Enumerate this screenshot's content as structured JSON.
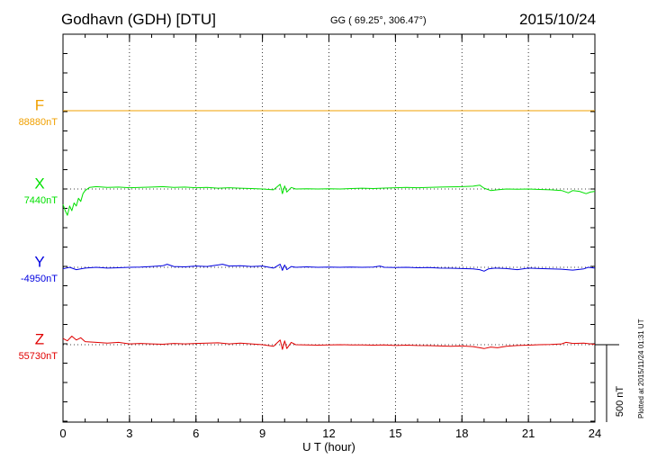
{
  "header": {
    "station": "Godhavn (GDH)  [DTU]",
    "coords": "GG ( 69.25°, 306.47°)",
    "date": "2015/10/24"
  },
  "side_note": "Plotted at 2015/11/24 01:31  UT",
  "chart_data": {
    "type": "line",
    "xlabel": "U T (hour)",
    "xlim": [
      0,
      24
    ],
    "x_ticks": [
      "0",
      "3",
      "6",
      "9",
      "12",
      "15",
      "18",
      "21",
      "24"
    ],
    "scale_label": "500 nT",
    "scale_nT": 500,
    "series": [
      {
        "name": "F",
        "baseline_label": "88880nT",
        "color": "#f0a000",
        "points": [
          [
            0,
            0
          ],
          [
            24,
            0
          ]
        ]
      },
      {
        "name": "X",
        "baseline_label": "7440nT",
        "color": "#00e000",
        "points": [
          [
            0,
            -100
          ],
          [
            0.1,
            -140
          ],
          [
            0.2,
            -170
          ],
          [
            0.3,
            -110
          ],
          [
            0.4,
            -140
          ],
          [
            0.5,
            -90
          ],
          [
            0.6,
            -110
          ],
          [
            0.7,
            -60
          ],
          [
            0.8,
            -80
          ],
          [
            0.9,
            -30
          ],
          [
            1.0,
            -10
          ],
          [
            1.2,
            10
          ],
          [
            1.5,
            15
          ],
          [
            2.0,
            10
          ],
          [
            2.5,
            12
          ],
          [
            3.0,
            8
          ],
          [
            3.5,
            10
          ],
          [
            4.0,
            12
          ],
          [
            4.5,
            15
          ],
          [
            5.0,
            10
          ],
          [
            5.5,
            12
          ],
          [
            6.0,
            8
          ],
          [
            6.5,
            10
          ],
          [
            7.0,
            5
          ],
          [
            7.5,
            8
          ],
          [
            8.0,
            5
          ],
          [
            8.5,
            3
          ],
          [
            9.0,
            0
          ],
          [
            9.5,
            -5
          ],
          [
            9.8,
            30
          ],
          [
            9.9,
            -30
          ],
          [
            10.0,
            20
          ],
          [
            10.1,
            -20
          ],
          [
            10.3,
            10
          ],
          [
            10.5,
            0
          ],
          [
            11.0,
            2
          ],
          [
            11.5,
            0
          ],
          [
            12.0,
            2
          ],
          [
            12.5,
            0
          ],
          [
            13.0,
            3
          ],
          [
            13.5,
            5
          ],
          [
            14.0,
            3
          ],
          [
            14.5,
            6
          ],
          [
            15.0,
            8
          ],
          [
            15.5,
            10
          ],
          [
            16.0,
            8
          ],
          [
            16.5,
            10
          ],
          [
            17.0,
            12
          ],
          [
            17.5,
            14
          ],
          [
            18.0,
            15
          ],
          [
            18.5,
            18
          ],
          [
            18.8,
            25
          ],
          [
            19.0,
            5
          ],
          [
            19.3,
            -10
          ],
          [
            19.6,
            -5
          ],
          [
            20.0,
            0
          ],
          [
            20.5,
            -2
          ],
          [
            21.0,
            0
          ],
          [
            21.5,
            -3
          ],
          [
            22.0,
            -5
          ],
          [
            22.5,
            -10
          ],
          [
            22.8,
            -25
          ],
          [
            23.0,
            -10
          ],
          [
            23.3,
            -15
          ],
          [
            23.6,
            -30
          ],
          [
            23.8,
            -20
          ],
          [
            24.0,
            -15
          ]
        ]
      },
      {
        "name": "Y",
        "baseline_label": "-4950nT",
        "color": "#0000e0",
        "points": [
          [
            0,
            -10
          ],
          [
            0.3,
            0
          ],
          [
            0.6,
            -15
          ],
          [
            1.0,
            -5
          ],
          [
            1.5,
            0
          ],
          [
            2.0,
            -5
          ],
          [
            2.5,
            -3
          ],
          [
            3.0,
            0
          ],
          [
            3.5,
            2
          ],
          [
            4.0,
            5
          ],
          [
            4.5,
            10
          ],
          [
            4.7,
            20
          ],
          [
            5.0,
            5
          ],
          [
            5.5,
            3
          ],
          [
            6.0,
            8
          ],
          [
            6.5,
            5
          ],
          [
            7.0,
            15
          ],
          [
            7.2,
            20
          ],
          [
            7.5,
            8
          ],
          [
            8.0,
            10
          ],
          [
            8.5,
            5
          ],
          [
            9.0,
            8
          ],
          [
            9.5,
            -5
          ],
          [
            9.8,
            20
          ],
          [
            9.9,
            -20
          ],
          [
            10.0,
            15
          ],
          [
            10.1,
            -15
          ],
          [
            10.3,
            5
          ],
          [
            10.5,
            0
          ],
          [
            11.0,
            3
          ],
          [
            11.5,
            0
          ],
          [
            12.0,
            2
          ],
          [
            12.5,
            0
          ],
          [
            13.0,
            2
          ],
          [
            13.5,
            0
          ],
          [
            14.0,
            2
          ],
          [
            14.3,
            8
          ],
          [
            14.5,
            0
          ],
          [
            15.0,
            -2
          ],
          [
            15.5,
            0
          ],
          [
            16.0,
            -3
          ],
          [
            16.5,
            -2
          ],
          [
            17.0,
            -5
          ],
          [
            17.5,
            -6
          ],
          [
            18.0,
            -8
          ],
          [
            18.5,
            -10
          ],
          [
            18.8,
            -15
          ],
          [
            19.0,
            -25
          ],
          [
            19.2,
            -10
          ],
          [
            19.5,
            -5
          ],
          [
            20.0,
            -8
          ],
          [
            20.5,
            -15
          ],
          [
            21.0,
            -5
          ],
          [
            21.5,
            -8
          ],
          [
            22.0,
            -10
          ],
          [
            22.5,
            -12
          ],
          [
            23.0,
            -18
          ],
          [
            23.5,
            -10
          ],
          [
            23.7,
            0
          ],
          [
            24.0,
            -5
          ]
        ]
      },
      {
        "name": "Z",
        "baseline_label": "55730nT",
        "color": "#e00000",
        "points": [
          [
            0,
            40
          ],
          [
            0.2,
            25
          ],
          [
            0.4,
            55
          ],
          [
            0.6,
            30
          ],
          [
            0.8,
            45
          ],
          [
            1.0,
            20
          ],
          [
            1.5,
            15
          ],
          [
            2.0,
            10
          ],
          [
            2.5,
            15
          ],
          [
            3.0,
            5
          ],
          [
            3.5,
            8
          ],
          [
            4.0,
            5
          ],
          [
            4.5,
            3
          ],
          [
            5.0,
            8
          ],
          [
            5.5,
            5
          ],
          [
            6.0,
            8
          ],
          [
            6.5,
            10
          ],
          [
            7.0,
            12
          ],
          [
            7.5,
            5
          ],
          [
            8.0,
            10
          ],
          [
            8.5,
            5
          ],
          [
            9.0,
            0
          ],
          [
            9.5,
            -10
          ],
          [
            9.8,
            30
          ],
          [
            9.9,
            -30
          ],
          [
            10.0,
            25
          ],
          [
            10.1,
            -25
          ],
          [
            10.3,
            15
          ],
          [
            10.5,
            0
          ],
          [
            11.0,
            -2
          ],
          [
            11.5,
            -3
          ],
          [
            12.0,
            -2
          ],
          [
            12.5,
            0
          ],
          [
            13.0,
            -1
          ],
          [
            13.5,
            -2
          ],
          [
            14.0,
            -3
          ],
          [
            14.5,
            -2
          ],
          [
            15.0,
            -5
          ],
          [
            15.5,
            -3
          ],
          [
            16.0,
            -5
          ],
          [
            16.5,
            -6
          ],
          [
            17.0,
            -8
          ],
          [
            17.5,
            -10
          ],
          [
            18.0,
            -8
          ],
          [
            18.5,
            -12
          ],
          [
            18.8,
            -20
          ],
          [
            19.0,
            -25
          ],
          [
            19.3,
            -15
          ],
          [
            19.6,
            -20
          ],
          [
            20.0,
            -10
          ],
          [
            20.5,
            -5
          ],
          [
            21.0,
            -3
          ],
          [
            21.5,
            0
          ],
          [
            22.0,
            2
          ],
          [
            22.5,
            5
          ],
          [
            22.7,
            15
          ],
          [
            23.0,
            8
          ],
          [
            23.5,
            10
          ],
          [
            23.8,
            5
          ],
          [
            24.0,
            3
          ]
        ]
      }
    ]
  }
}
